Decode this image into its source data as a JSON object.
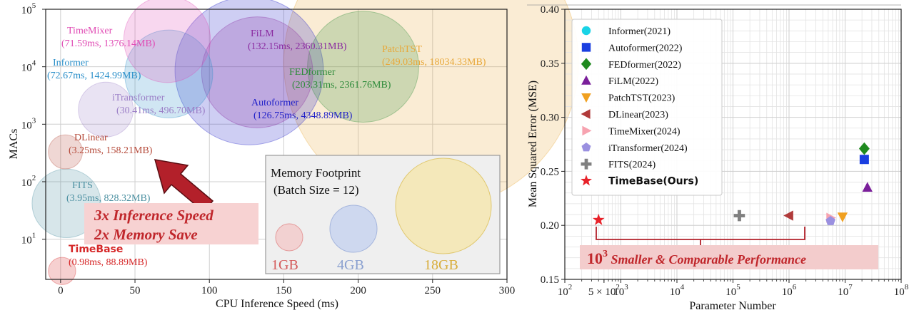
{
  "chart_data": [
    {
      "type": "scatter",
      "xlabel": "CPU Inference Speed (ms)",
      "ylabel": "MACs",
      "xlim": [
        -10,
        300
      ],
      "ylim": [
        2,
        100000
      ],
      "yscale": "log",
      "xticks": [
        "0",
        "50",
        "100",
        "150",
        "200",
        "250",
        "300"
      ],
      "yticks": [
        {
          "base": "10",
          "exp": "5"
        },
        {
          "base": "10",
          "exp": "4"
        },
        {
          "base": "10",
          "exp": "3"
        },
        {
          "base": "10",
          "exp": "2"
        },
        {
          "base": "10",
          "exp": "1"
        }
      ],
      "grid": true,
      "points": [
        {
          "name": "TimeMixer",
          "detail": "(71.59ms, 1376.14MB)",
          "x": 71.59,
          "y": 30000,
          "memory_mb": 1376.14,
          "color": "#e04bb4"
        },
        {
          "name": "Informer",
          "detail": "(72.67ms, 1424.99MB)",
          "x": 72.67,
          "y": 7500,
          "memory_mb": 1424.99,
          "color": "#2a8fc9"
        },
        {
          "name": "iTransformer",
          "detail": "(30.41ms, 496.70MB)",
          "x": 30.41,
          "y": 1800,
          "memory_mb": 496.7,
          "color": "#9b7fc7"
        },
        {
          "name": "DLinear",
          "detail": "(3.25ms, 158.21MB)",
          "x": 3.25,
          "y": 330,
          "memory_mb": 158.21,
          "color": "#b54a3a"
        },
        {
          "name": "FITS",
          "detail": "(3.95ms, 828.32MB)",
          "x": 3.95,
          "y": 42,
          "memory_mb": 828.32,
          "color": "#4a8fa0"
        },
        {
          "name": "TimeBase",
          "detail": "(0.98ms, 88.89MB)",
          "x": 0.98,
          "y": 2.8,
          "memory_mb": 88.89,
          "color": "#d62728"
        },
        {
          "name": "FiLM",
          "detail": "(132.15ms, 2360.31MB)",
          "x": 132.15,
          "y": 8000,
          "memory_mb": 2360.31,
          "color": "#8a2aa0"
        },
        {
          "name": "Autoformer",
          "detail": "(126.75ms, 4348.89MB)",
          "x": 126.75,
          "y": 8500,
          "memory_mb": 4348.89,
          "color": "#2020c8"
        },
        {
          "name": "FEDformer",
          "detail": "(203.31ms, 2361.76MB)",
          "x": 203.31,
          "y": 10000,
          "memory_mb": 2361.76,
          "color": "#2e8b3a"
        },
        {
          "name": "PatchTST",
          "detail": "(249.03ms, 18034.33MB)",
          "x": 249.03,
          "y": 12000,
          "memory_mb": 18034.33,
          "color": "#e8a83a"
        }
      ],
      "memory_legend": {
        "title_line1": "Memory Footprint",
        "title_line2": "(Batch Size = 12)",
        "items": [
          {
            "label": "1GB",
            "color": "#d45a5a"
          },
          {
            "label": "4GB",
            "color": "#8aa0d0"
          },
          {
            "label": "18GB",
            "color": "#d8ad3c"
          }
        ]
      },
      "callout_line1": "3x Inference Speed",
      "callout_line2": "2x Memory Save"
    },
    {
      "type": "scatter",
      "xlabel": "Parameter Number",
      "ylabel": "Mean Squared Error (MSE)",
      "xscale": "log",
      "xlim": [
        100,
        100000000
      ],
      "ylim": [
        0.15,
        0.4
      ],
      "yticks": [
        "0.40",
        "0.35",
        "0.30",
        "0.25",
        "0.20",
        "0.15"
      ],
      "xticks": [
        {
          "base": "10",
          "exp": "2"
        },
        {
          "base": "5 × 10",
          "exp": "2"
        },
        {
          "base": "10",
          "exp": "3"
        },
        {
          "base": "10",
          "exp": "4"
        },
        {
          "base": "10",
          "exp": "5"
        },
        {
          "base": "10",
          "exp": "6"
        },
        {
          "base": "10",
          "exp": "7"
        },
        {
          "base": "10",
          "exp": "8"
        }
      ],
      "grid": true,
      "legend_position": "top-left",
      "series": [
        {
          "name": "Informer(2021)",
          "marker": "circle",
          "color": "#19d3e6",
          "x": null,
          "y": null
        },
        {
          "name": "Autoformer(2022)",
          "marker": "square",
          "color": "#1a3fe0",
          "x": 22000000,
          "y": 0.261
        },
        {
          "name": "FEDformer(2022)",
          "marker": "diamond",
          "color": "#1f8a1f",
          "x": 22000000,
          "y": 0.271
        },
        {
          "name": "FiLM(2022)",
          "marker": "triangle-up",
          "color": "#7a1f9a",
          "x": 25000000,
          "y": 0.235
        },
        {
          "name": "PatchTST(2023)",
          "marker": "triangle-down",
          "color": "#f0a020",
          "x": 9000000,
          "y": 0.208
        },
        {
          "name": "DLinear(2023)",
          "marker": "triangle-left",
          "color": "#b03a3a",
          "x": 1000000,
          "y": 0.209
        },
        {
          "name": "TimeMixer(2024)",
          "marker": "triangle-right",
          "color": "#f7a3b0",
          "x": 5500000,
          "y": 0.207
        },
        {
          "name": "iTransformer(2024)",
          "marker": "pentagon",
          "color": "#9a90e0",
          "x": 5500000,
          "y": 0.204
        },
        {
          "name": "FITS(2024)",
          "marker": "plus",
          "color": "#808080",
          "x": 130000,
          "y": 0.209
        },
        {
          "name": "TimeBase(Ours)",
          "marker": "star",
          "color": "#e8222a",
          "x": 400,
          "y": 0.205,
          "bold": true
        }
      ],
      "callout_base": "10",
      "callout_exp": "3",
      "callout_text": " Smaller & Comparable Performance"
    }
  ]
}
